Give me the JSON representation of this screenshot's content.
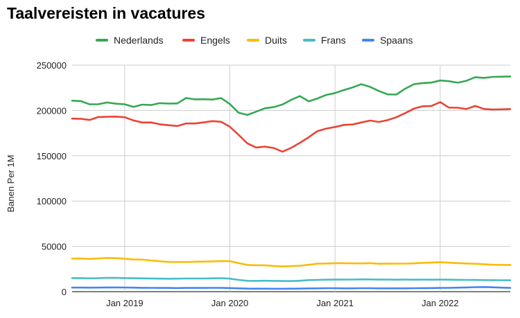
{
  "chart_data": {
    "type": "line",
    "title": "Taalvereisten in vacatures",
    "ylabel": "Banen Per 1M",
    "xlabel": "",
    "ylim": [
      0,
      250000
    ],
    "y_ticks": [
      "0",
      "50000",
      "100000",
      "150000",
      "200000",
      "250000"
    ],
    "x_ticks": [
      "Jan 2019",
      "Jan 2020",
      "Jan 2021",
      "Jan 2022"
    ],
    "legend_position": "top-center",
    "grid": true,
    "x": [
      "2018-07",
      "2018-08",
      "2018-09",
      "2018-10",
      "2018-11",
      "2018-12",
      "2019-01",
      "2019-02",
      "2019-03",
      "2019-04",
      "2019-05",
      "2019-06",
      "2019-07",
      "2019-08",
      "2019-09",
      "2019-10",
      "2019-11",
      "2019-12",
      "2020-01",
      "2020-02",
      "2020-03",
      "2020-04",
      "2020-05",
      "2020-06",
      "2020-07",
      "2020-08",
      "2020-09",
      "2020-10",
      "2020-11",
      "2020-12",
      "2021-01",
      "2021-02",
      "2021-03",
      "2021-04",
      "2021-05",
      "2021-06",
      "2021-07",
      "2021-08",
      "2021-09",
      "2021-10",
      "2021-11",
      "2021-12",
      "2022-01",
      "2022-02",
      "2022-03",
      "2022-04",
      "2022-05",
      "2022-06",
      "2022-07",
      "2022-08",
      "2022-09"
    ],
    "series": [
      {
        "name": "Nederlands",
        "color": "#34a853",
        "values": [
          210800,
          210300,
          206700,
          206900,
          208800,
          207400,
          206800,
          204000,
          206400,
          206000,
          208000,
          207600,
          207700,
          213700,
          212200,
          212400,
          212000,
          213600,
          207000,
          197400,
          195000,
          198600,
          202400,
          203700,
          206500,
          211700,
          215800,
          210000,
          213200,
          217100,
          219200,
          222500,
          225400,
          229000,
          226000,
          221500,
          217700,
          217500,
          223900,
          229000,
          230200,
          230700,
          233000,
          232300,
          230600,
          232700,
          236700,
          235900,
          237000,
          237200,
          237500
        ]
      },
      {
        "name": "Engels",
        "color": "#ea4335",
        "values": [
          191000,
          190800,
          189500,
          192700,
          193000,
          193200,
          192500,
          189000,
          186700,
          186800,
          184700,
          183700,
          182800,
          185600,
          185600,
          186800,
          188200,
          187500,
          182000,
          173000,
          163700,
          159100,
          160000,
          158600,
          154500,
          158700,
          164300,
          170400,
          177200,
          180000,
          181700,
          184000,
          184500,
          186700,
          188800,
          187300,
          189300,
          192500,
          197000,
          202000,
          204600,
          205000,
          209200,
          203100,
          203000,
          201600,
          205000,
          201600,
          201000,
          201200,
          201500
        ]
      },
      {
        "name": "Duits",
        "color": "#fbbc04",
        "values": [
          36500,
          36700,
          36200,
          36700,
          37200,
          37000,
          36400,
          35600,
          35400,
          34400,
          33600,
          32800,
          32700,
          32700,
          33000,
          33200,
          33400,
          33800,
          33700,
          31500,
          29500,
          29200,
          29100,
          28400,
          27800,
          28200,
          28700,
          29700,
          30900,
          31100,
          31400,
          31400,
          31300,
          31200,
          31500,
          30800,
          30900,
          31000,
          31000,
          31300,
          31800,
          32200,
          32600,
          32000,
          31500,
          31100,
          30800,
          30300,
          29700,
          29600,
          29500
        ]
      },
      {
        "name": "Frans",
        "color": "#46bdc6",
        "values": [
          15000,
          15000,
          14700,
          14900,
          15200,
          15300,
          15000,
          14800,
          14700,
          14600,
          14400,
          14300,
          14400,
          14500,
          14500,
          14500,
          14700,
          14900,
          14400,
          13000,
          12000,
          11900,
          12100,
          11900,
          11800,
          11700,
          12100,
          12800,
          13000,
          13200,
          13400,
          13300,
          13400,
          13600,
          13500,
          13300,
          13300,
          13200,
          13300,
          13200,
          13300,
          13200,
          13300,
          13200,
          13100,
          13000,
          12900,
          12800,
          12700,
          12600,
          12500
        ]
      },
      {
        "name": "Spaans",
        "color": "#4285f4",
        "values": [
          4500,
          4500,
          4400,
          4500,
          4700,
          4700,
          4600,
          4400,
          4300,
          4200,
          4100,
          4100,
          4000,
          4100,
          4100,
          4100,
          4200,
          4200,
          4000,
          3700,
          3400,
          3300,
          3300,
          3200,
          3200,
          3300,
          3400,
          3600,
          3700,
          3800,
          3800,
          3700,
          3700,
          3800,
          3800,
          3700,
          3700,
          3700,
          3700,
          3800,
          3900,
          4000,
          4100,
          4200,
          4400,
          4700,
          5000,
          5100,
          4800,
          4400,
          4200
        ]
      }
    ]
  }
}
